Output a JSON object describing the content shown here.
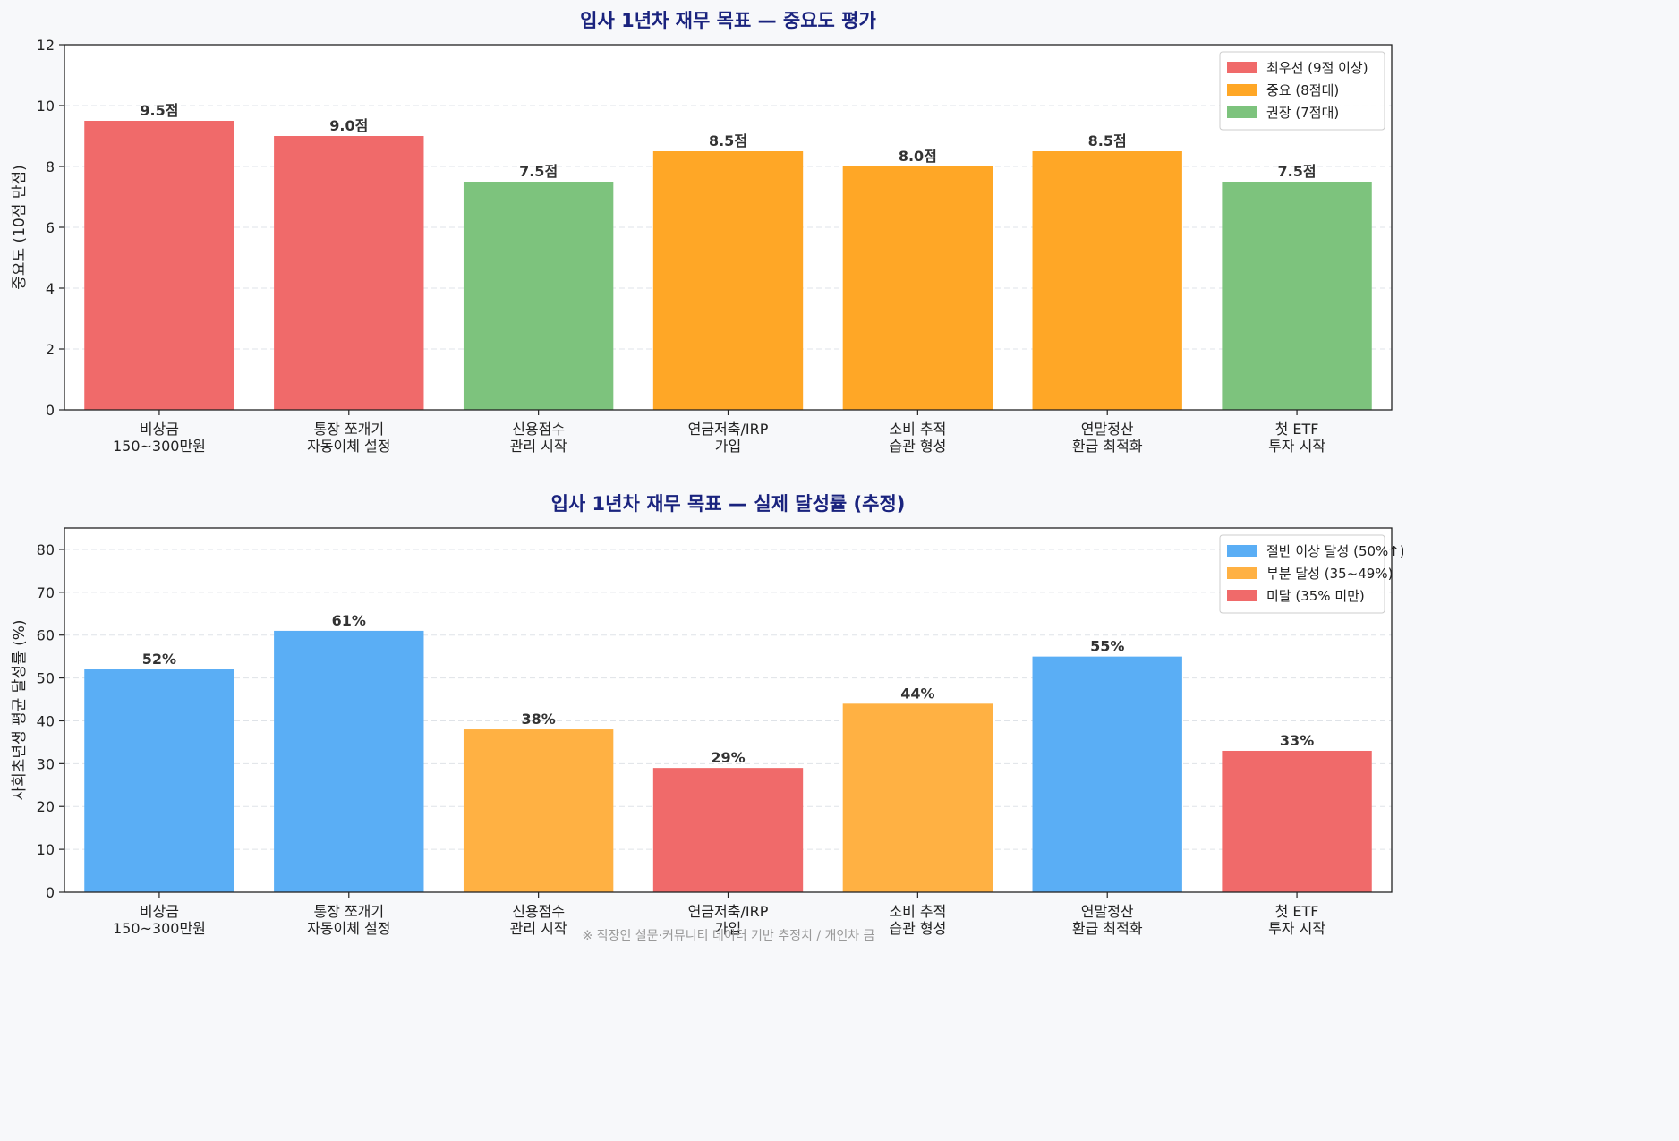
{
  "colors": {
    "background": "#f7f8fa",
    "title": "#1a237e",
    "priority": "#f06a6a",
    "important": "#ffa726",
    "recommended": "#7dc37d",
    "over_half": "#5aaef5",
    "partial": "#ffb143",
    "below": "#f06a6a",
    "grid": "#dfe3e8",
    "text": "#222222",
    "footnote": "#999999"
  },
  "footnote": "※ 직장인 설문·커뮤니티 데이터 기반 추정치 / 개인차 큼",
  "chart_data": [
    {
      "type": "bar",
      "title": "입사 1년차 재무 목표 — 중요도 평가",
      "xlabel": "",
      "ylabel": "중요도 (10점 만점)",
      "ylim": [
        0,
        12
      ],
      "yticks": [
        0,
        2,
        4,
        6,
        8,
        10,
        12
      ],
      "ytick_labels": [
        "0",
        "2",
        "4",
        "6",
        "8",
        "10",
        "12"
      ],
      "grid": true,
      "legend_position": "top-right",
      "categories": [
        [
          "비상금",
          "150~300만원"
        ],
        [
          "통장 쪼개기",
          "자동이체 설정"
        ],
        [
          "신용점수",
          "관리 시작"
        ],
        [
          "연금저축/IRP",
          "가입"
        ],
        [
          "소비 추적",
          "습관 형성"
        ],
        [
          "연말정산",
          "환급 최적화"
        ],
        [
          "첫 ETF",
          "투자 시작"
        ]
      ],
      "values": [
        9.5,
        9.0,
        7.5,
        8.5,
        8.0,
        8.5,
        7.5
      ],
      "data_labels": [
        "9.5점",
        "9.0점",
        "7.5점",
        "8.5점",
        "8.0점",
        "8.5점",
        "7.5점"
      ],
      "bar_groups": [
        0,
        0,
        2,
        1,
        1,
        1,
        2
      ],
      "legend": [
        {
          "label": "최우선 (9점 이상)",
          "color": "#f06a6a"
        },
        {
          "label": "중요 (8점대)",
          "color": "#ffa726"
        },
        {
          "label": "권장 (7점대)",
          "color": "#7dc37d"
        }
      ]
    },
    {
      "type": "bar",
      "title": "입사 1년차 재무 목표 — 실제 달성률 (추정)",
      "xlabel": "",
      "ylabel": "사회초년생 평균 달성률 (%)",
      "ylim": [
        0,
        85
      ],
      "yticks": [
        0,
        10,
        20,
        30,
        40,
        50,
        60,
        70,
        80
      ],
      "ytick_labels": [
        "0",
        "10",
        "20",
        "30",
        "40",
        "50",
        "60",
        "70",
        "80"
      ],
      "grid": true,
      "legend_position": "top-right",
      "categories": [
        [
          "비상금",
          "150~300만원"
        ],
        [
          "통장 쪼개기",
          "자동이체 설정"
        ],
        [
          "신용점수",
          "관리 시작"
        ],
        [
          "연금저축/IRP",
          "가입"
        ],
        [
          "소비 추적",
          "습관 형성"
        ],
        [
          "연말정산",
          "환급 최적화"
        ],
        [
          "첫 ETF",
          "투자 시작"
        ]
      ],
      "values": [
        52,
        61,
        38,
        29,
        44,
        55,
        33
      ],
      "data_labels": [
        "52%",
        "61%",
        "38%",
        "29%",
        "44%",
        "55%",
        "33%"
      ],
      "bar_groups": [
        0,
        0,
        1,
        2,
        1,
        0,
        2
      ],
      "legend": [
        {
          "label": "절반 이상 달성 (50%↑)",
          "color": "#5aaef5"
        },
        {
          "label": "부분 달성 (35~49%)",
          "color": "#ffb143"
        },
        {
          "label": "미달 (35% 미만)",
          "color": "#f06a6a"
        }
      ]
    }
  ]
}
